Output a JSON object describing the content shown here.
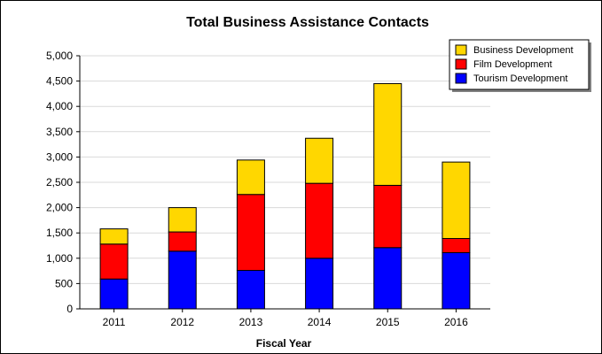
{
  "chart_data": {
    "type": "bar",
    "stacked": true,
    "title": "Total Business Assistance Contacts",
    "xlabel": "Fiscal Year",
    "ylabel": "",
    "categories": [
      "2011",
      "2012",
      "2013",
      "2014",
      "2015",
      "2016"
    ],
    "ylim": [
      0,
      5000
    ],
    "yticks": [
      0,
      500,
      1000,
      1500,
      2000,
      2500,
      3000,
      3500,
      4000,
      4500,
      5000
    ],
    "ytick_labels": [
      "0",
      "500",
      "1,000",
      "1,500",
      "2,000",
      "2,500",
      "3,000",
      "3,500",
      "4,000",
      "4,500",
      "5,000"
    ],
    "grid": true,
    "legend_position": "top-right",
    "series": [
      {
        "name": "Tourism Development",
        "color": "#0000ff",
        "values": [
          590,
          1140,
          760,
          1000,
          1210,
          1110
        ]
      },
      {
        "name": "Film Development",
        "color": "#ff0000",
        "values": [
          690,
          380,
          1500,
          1480,
          1230,
          280
        ]
      },
      {
        "name": "Business Development",
        "color": "#ffd700",
        "values": [
          300,
          480,
          680,
          890,
          2010,
          1510
        ]
      }
    ],
    "legend_order": [
      "Business Development",
      "Film Development",
      "Tourism Development"
    ]
  }
}
